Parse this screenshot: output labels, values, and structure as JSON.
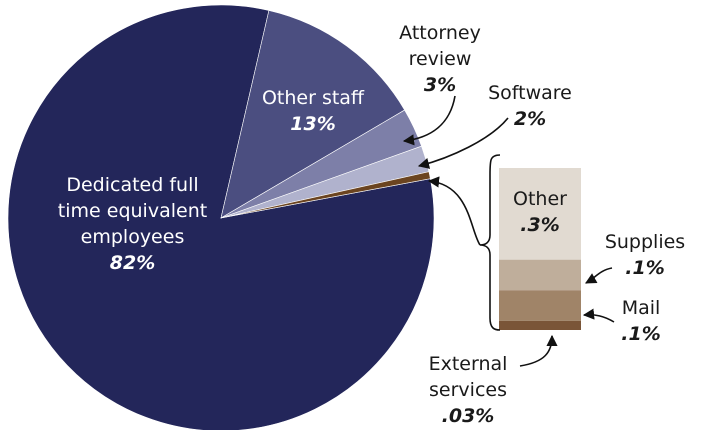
{
  "chart_data": {
    "type": "pie",
    "categories": [
      "Dedicated full time equivalent employees",
      "Other staff",
      "Attorney review",
      "Software"
    ],
    "values": [
      82,
      13,
      3,
      2
    ],
    "value_labels": [
      "82%",
      "13%",
      "3%",
      "2%"
    ],
    "colors": [
      "#23265a",
      "#4b4e80",
      "#7d7fa8",
      "#b0b2cd"
    ],
    "breakout": {
      "color": "#6b4420",
      "categories": [
        "Other",
        "Supplies",
        "Mail",
        "External services"
      ],
      "values": [
        0.3,
        0.1,
        0.1,
        0.03
      ],
      "value_labels": [
        ".3%",
        ".1%",
        ".1%",
        ".03%"
      ],
      "colors": [
        "#e1dad1",
        "#bfae9b",
        "#a08468",
        "#7a5538"
      ]
    }
  }
}
